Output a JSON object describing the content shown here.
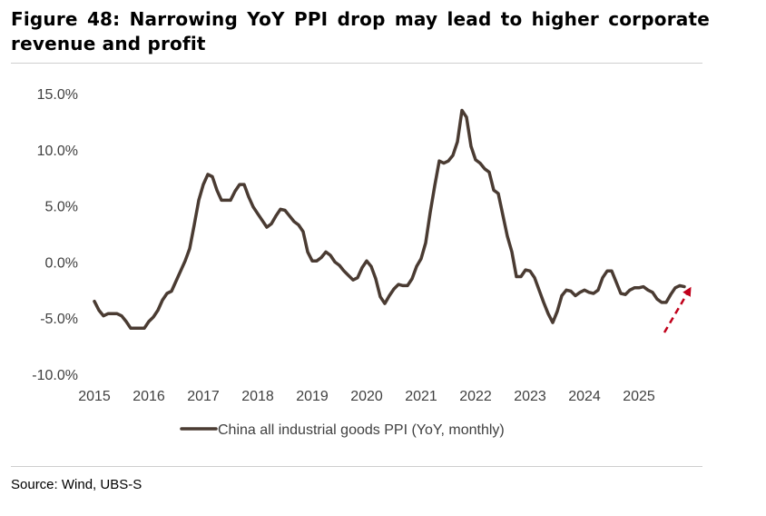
{
  "figure": {
    "title": "Figure 48: Narrowing YoY PPI drop may lead to higher corporate revenue and profit",
    "source": "Source: Wind, UBS-S"
  },
  "colors": {
    "line": "#4a3b32",
    "arrow": "#c0001a",
    "text": "#404040",
    "rule": "#cfcfcf"
  },
  "chart_data": {
    "type": "line",
    "title": "",
    "xlabel": "",
    "ylabel": "",
    "x_ticks": [
      "2015",
      "2016",
      "2017",
      "2018",
      "2019",
      "2020",
      "2021",
      "2022",
      "2023",
      "2024",
      "2025"
    ],
    "y_ticks": [
      "15.0%",
      "10.0%",
      "5.0%",
      "0.0%",
      "-5.0%",
      "-10.0%"
    ],
    "ylim": [
      -10,
      15
    ],
    "xlim": [
      "2015-01",
      "2026-01"
    ],
    "grid": false,
    "legend_position": "bottom",
    "annotation": "dashed red upward arrow after the last point",
    "series": [
      {
        "name": "China all industrial goods PPI (YoY, monthly)",
        "points": [
          [
            "2015-01",
            -3.5
          ],
          [
            "2015-02",
            -4.3
          ],
          [
            "2015-03",
            -4.8
          ],
          [
            "2015-04",
            -4.6
          ],
          [
            "2015-05",
            -4.6
          ],
          [
            "2015-06",
            -4.6
          ],
          [
            "2015-07",
            -4.8
          ],
          [
            "2015-08",
            -5.3
          ],
          [
            "2015-09",
            -5.9
          ],
          [
            "2015-10",
            -5.9
          ],
          [
            "2015-11",
            -5.9
          ],
          [
            "2015-12",
            -5.9
          ],
          [
            "2016-01",
            -5.3
          ],
          [
            "2016-02",
            -4.9
          ],
          [
            "2016-03",
            -4.3
          ],
          [
            "2016-04",
            -3.4
          ],
          [
            "2016-05",
            -2.8
          ],
          [
            "2016-06",
            -2.6
          ],
          [
            "2016-07",
            -1.7
          ],
          [
            "2016-08",
            -0.8
          ],
          [
            "2016-09",
            0.1
          ],
          [
            "2016-10",
            1.2
          ],
          [
            "2016-11",
            3.3
          ],
          [
            "2016-12",
            5.5
          ],
          [
            "2017-01",
            6.9
          ],
          [
            "2017-02",
            7.8
          ],
          [
            "2017-03",
            7.6
          ],
          [
            "2017-04",
            6.4
          ],
          [
            "2017-05",
            5.5
          ],
          [
            "2017-06",
            5.5
          ],
          [
            "2017-07",
            5.5
          ],
          [
            "2017-08",
            6.3
          ],
          [
            "2017-09",
            6.9
          ],
          [
            "2017-10",
            6.9
          ],
          [
            "2017-11",
            5.8
          ],
          [
            "2017-12",
            4.9
          ],
          [
            "2018-01",
            4.3
          ],
          [
            "2018-02",
            3.7
          ],
          [
            "2018-03",
            3.1
          ],
          [
            "2018-04",
            3.4
          ],
          [
            "2018-05",
            4.1
          ],
          [
            "2018-06",
            4.7
          ],
          [
            "2018-07",
            4.6
          ],
          [
            "2018-08",
            4.1
          ],
          [
            "2018-09",
            3.6
          ],
          [
            "2018-10",
            3.3
          ],
          [
            "2018-11",
            2.7
          ],
          [
            "2018-12",
            0.9
          ],
          [
            "2019-01",
            0.1
          ],
          [
            "2019-02",
            0.1
          ],
          [
            "2019-03",
            0.4
          ],
          [
            "2019-04",
            0.9
          ],
          [
            "2019-05",
            0.6
          ],
          [
            "2019-06",
            0.0
          ],
          [
            "2019-07",
            -0.3
          ],
          [
            "2019-08",
            -0.8
          ],
          [
            "2019-09",
            -1.2
          ],
          [
            "2019-10",
            -1.6
          ],
          [
            "2019-11",
            -1.4
          ],
          [
            "2019-12",
            -0.5
          ],
          [
            "2020-01",
            0.1
          ],
          [
            "2020-02",
            -0.4
          ],
          [
            "2020-03",
            -1.5
          ],
          [
            "2020-04",
            -3.1
          ],
          [
            "2020-05",
            -3.7
          ],
          [
            "2020-06",
            -3.0
          ],
          [
            "2020-07",
            -2.4
          ],
          [
            "2020-08",
            -2.0
          ],
          [
            "2020-09",
            -2.1
          ],
          [
            "2020-10",
            -2.1
          ],
          [
            "2020-11",
            -1.5
          ],
          [
            "2020-12",
            -0.4
          ],
          [
            "2021-01",
            0.3
          ],
          [
            "2021-02",
            1.7
          ],
          [
            "2021-03",
            4.4
          ],
          [
            "2021-04",
            6.8
          ],
          [
            "2021-05",
            9.0
          ],
          [
            "2021-06",
            8.8
          ],
          [
            "2021-07",
            9.0
          ],
          [
            "2021-08",
            9.5
          ],
          [
            "2021-09",
            10.7
          ],
          [
            "2021-10",
            13.5
          ],
          [
            "2021-11",
            12.9
          ],
          [
            "2021-12",
            10.3
          ],
          [
            "2022-01",
            9.1
          ],
          [
            "2022-02",
            8.8
          ],
          [
            "2022-03",
            8.3
          ],
          [
            "2022-04",
            8.0
          ],
          [
            "2022-05",
            6.4
          ],
          [
            "2022-06",
            6.1
          ],
          [
            "2022-07",
            4.2
          ],
          [
            "2022-08",
            2.3
          ],
          [
            "2022-09",
            0.9
          ],
          [
            "2022-10",
            -1.3
          ],
          [
            "2022-11",
            -1.3
          ],
          [
            "2022-12",
            -0.7
          ],
          [
            "2023-01",
            -0.8
          ],
          [
            "2023-02",
            -1.4
          ],
          [
            "2023-03",
            -2.5
          ],
          [
            "2023-04",
            -3.6
          ],
          [
            "2023-05",
            -4.6
          ],
          [
            "2023-06",
            -5.4
          ],
          [
            "2023-07",
            -4.4
          ],
          [
            "2023-08",
            -3.0
          ],
          [
            "2023-09",
            -2.5
          ],
          [
            "2023-10",
            -2.6
          ],
          [
            "2023-11",
            -3.0
          ],
          [
            "2023-12",
            -2.7
          ],
          [
            "2024-01",
            -2.5
          ],
          [
            "2024-02",
            -2.7
          ],
          [
            "2024-03",
            -2.8
          ],
          [
            "2024-04",
            -2.5
          ],
          [
            "2024-05",
            -1.4
          ],
          [
            "2024-06",
            -0.8
          ],
          [
            "2024-07",
            -0.8
          ],
          [
            "2024-08",
            -1.8
          ],
          [
            "2024-09",
            -2.8
          ],
          [
            "2024-10",
            -2.9
          ],
          [
            "2024-11",
            -2.5
          ],
          [
            "2024-12",
            -2.3
          ],
          [
            "2025-01",
            -2.3
          ],
          [
            "2025-02",
            -2.2
          ],
          [
            "2025-03",
            -2.5
          ],
          [
            "2025-04",
            -2.7
          ],
          [
            "2025-05",
            -3.3
          ],
          [
            "2025-06",
            -3.6
          ],
          [
            "2025-07",
            -3.6
          ],
          [
            "2025-08",
            -2.9
          ],
          [
            "2025-09",
            -2.3
          ],
          [
            "2025-10",
            -2.1
          ],
          [
            "2025-11",
            -2.2
          ]
        ]
      }
    ]
  }
}
